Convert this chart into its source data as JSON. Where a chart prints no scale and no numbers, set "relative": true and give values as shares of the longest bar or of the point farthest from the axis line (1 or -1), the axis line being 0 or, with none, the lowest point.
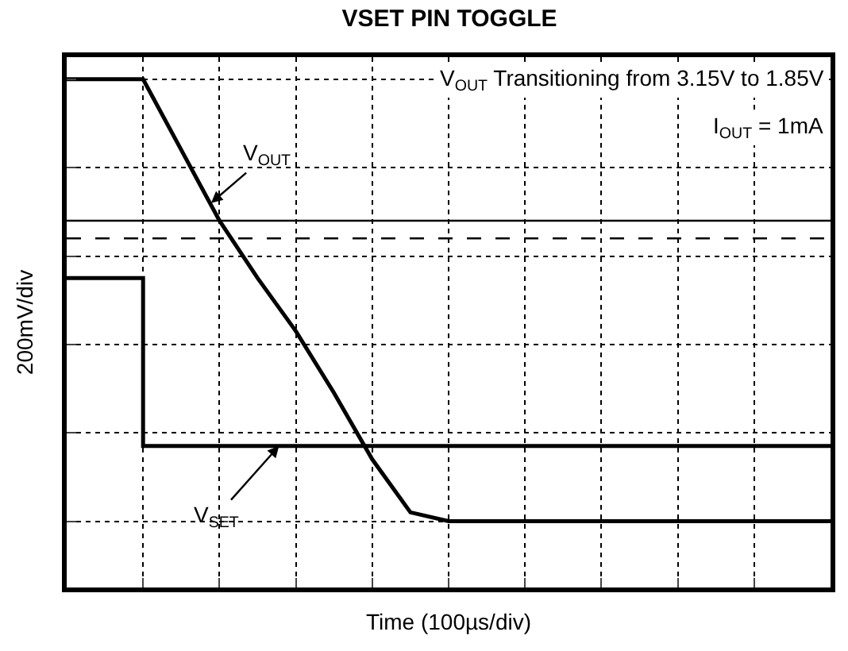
{
  "chart_data": {
    "type": "line",
    "title": "VSET PIN TOGGLE",
    "xlabel": "Time (100µs/div)",
    "ylabel": "200mV/div",
    "relative": true,
    "categories": [
      null,
      null,
      null,
      null,
      null,
      null,
      null,
      null,
      null,
      null,
      null,
      null,
      null,
      null,
      null,
      null,
      null,
      null,
      null,
      null,
      null
    ],
    "tick_labels": false,
    "grid": true,
    "marker": "none",
    "line_style": "solid",
    "series": [
      {
        "color": "#000000",
        "values": [
          1,
          1,
          1,
          0.84,
          0.68,
          0.55,
          0.43,
          0.29,
          0.14,
          0.02,
          0,
          0,
          0,
          0,
          0,
          0,
          0,
          0,
          0,
          0,
          0
        ]
      },
      {
        "type": "step",
        "color": "#000000",
        "values": [
          0.55,
          0.55,
          0.17,
          0.17,
          0.17,
          0.17,
          0.17,
          0.17,
          0.17,
          0.17,
          0.17,
          0.17,
          0.17,
          0.17,
          0.17,
          0.17,
          0.17,
          0.17,
          0.17,
          0.17,
          0.17
        ]
      }
    ],
    "ref_lines": [
      {
        "axis": "y",
        "value": 0.68,
        "color": "#000000",
        "line_style": "solid"
      },
      {
        "axis": "y",
        "value": 0.64,
        "color": "#000000",
        "line_style": "dashed"
      }
    ],
    "annotations": [
      "V$_{OUT}$",
      "V$_{SET}$",
      "V$_{OUT}$ Transitioning from 3.15V to 1.85V",
      "I$_{OUT}$ = 1mA"
    ]
  }
}
